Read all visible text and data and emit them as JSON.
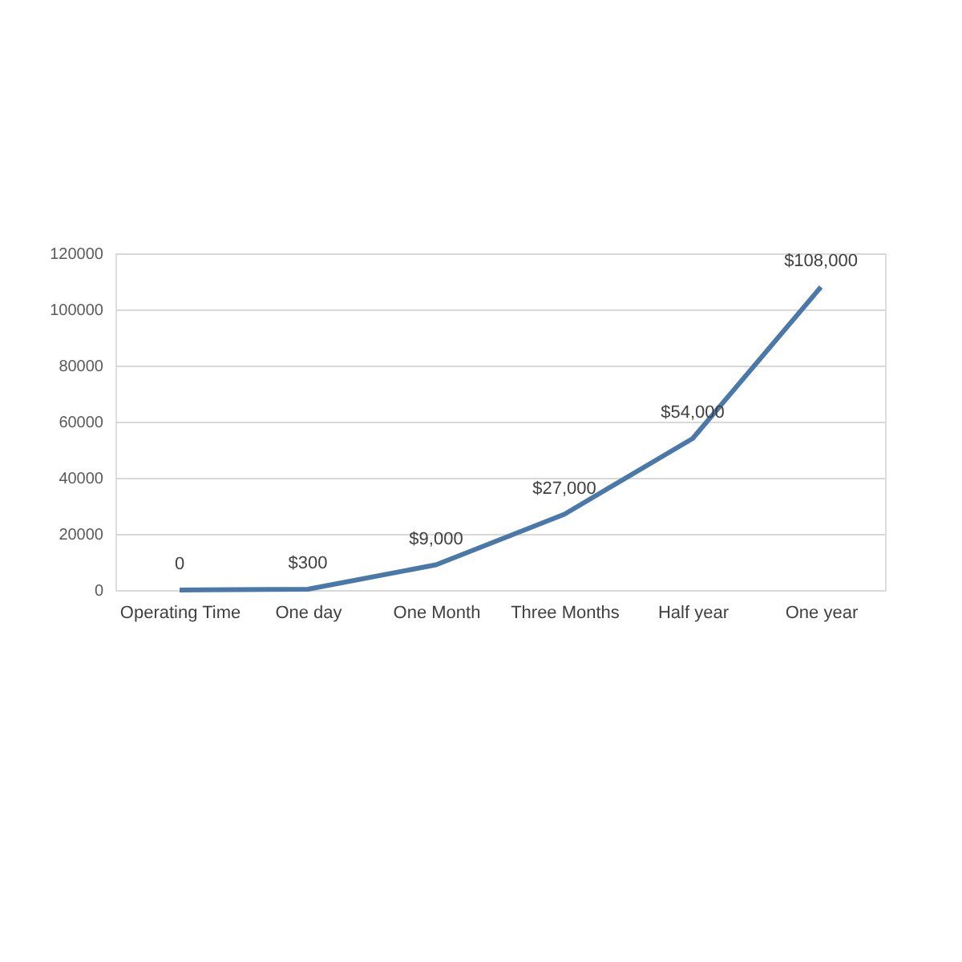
{
  "chart_data": {
    "type": "line",
    "categories": [
      "Operating Time",
      "One day",
      "One Month",
      "Three Months",
      "Half year",
      "One year"
    ],
    "series": [
      {
        "color": "#4a78a8",
        "values": [
          0,
          300,
          9000,
          27000,
          54000,
          108000
        ],
        "value_labels": [
          "0",
          "$300",
          "$9,000",
          "$27,000",
          "$54,000",
          "$108,000"
        ]
      }
    ],
    "ylim": [
      0,
      120000
    ],
    "yticks": [
      0,
      20000,
      40000,
      60000,
      80000,
      100000,
      120000
    ],
    "grid": "y",
    "marker": "none",
    "line_style": "solid"
  }
}
